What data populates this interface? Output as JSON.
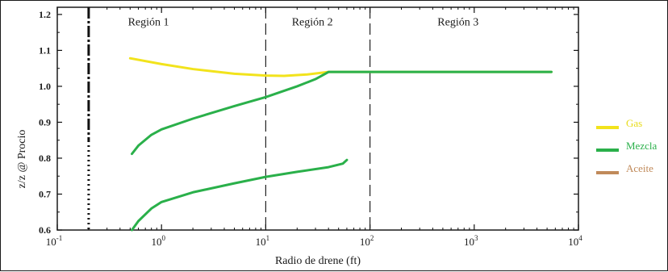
{
  "chart_data": {
    "type": "line",
    "xscale": "log",
    "xlabel": "Radio de drene (ft)",
    "ylabel": "z/z @ Procio",
    "xlim": [
      0.1,
      10000
    ],
    "ylim": [
      0.6,
      1.22
    ],
    "xticks": [
      {
        "value": 0.1,
        "base": "10",
        "exp": "-1"
      },
      {
        "value": 1,
        "base": "10",
        "exp": "0"
      },
      {
        "value": 10,
        "base": "10",
        "exp": "1"
      },
      {
        "value": 100,
        "base": "10",
        "exp": "2"
      },
      {
        "value": 1000,
        "base": "10",
        "exp": "3"
      },
      {
        "value": 10000,
        "base": "10",
        "exp": "4"
      }
    ],
    "yticks": [
      {
        "value": 0.6,
        "label": "0.6"
      },
      {
        "value": 0.7,
        "label": "0.7"
      },
      {
        "value": 0.8,
        "label": "0.8"
      },
      {
        "value": 0.9,
        "label": "0.9"
      },
      {
        "value": 1.0,
        "label": "1.0"
      },
      {
        "value": 1.1,
        "label": "1.1"
      },
      {
        "value": 1.2,
        "label": "1.2"
      }
    ],
    "region_lines": [
      {
        "x": 0.2,
        "style": "dashdot"
      },
      {
        "x": 10,
        "style": "dash"
      },
      {
        "x": 100,
        "style": "dash"
      }
    ],
    "regions": [
      {
        "label": "Región 1",
        "x": 0.75,
        "y": 1.17
      },
      {
        "label": "Región 2",
        "x": 28,
        "y": 1.17
      },
      {
        "label": "Región 3",
        "x": 700,
        "y": 1.17
      }
    ],
    "series": [
      {
        "name": "Gas",
        "color": "#f2e31c",
        "points": [
          [
            0.5,
            1.078
          ],
          [
            1,
            1.062
          ],
          [
            2,
            1.048
          ],
          [
            5,
            1.035
          ],
          [
            10,
            1.03
          ],
          [
            15,
            1.029
          ],
          [
            25,
            1.033
          ],
          [
            40,
            1.04
          ],
          [
            100,
            1.04
          ],
          [
            1000,
            1.04
          ],
          [
            5500,
            1.04
          ]
        ]
      },
      {
        "name": "Mezcla",
        "color": "#2ab04a",
        "points": [
          [
            0.52,
            0.812
          ],
          [
            0.6,
            0.835
          ],
          [
            0.8,
            0.865
          ],
          [
            1,
            0.88
          ],
          [
            2,
            0.91
          ],
          [
            5,
            0.945
          ],
          [
            10,
            0.97
          ],
          [
            20,
            1.0
          ],
          [
            30,
            1.02
          ],
          [
            40,
            1.04
          ],
          [
            100,
            1.04
          ],
          [
            1000,
            1.04
          ],
          [
            5500,
            1.04
          ]
        ]
      },
      {
        "name": "Mezcla",
        "color": "#2ab04a",
        "points": [
          [
            0.52,
            0.6
          ],
          [
            0.6,
            0.625
          ],
          [
            0.8,
            0.66
          ],
          [
            1,
            0.678
          ],
          [
            2,
            0.705
          ],
          [
            5,
            0.73
          ],
          [
            10,
            0.748
          ],
          [
            20,
            0.762
          ],
          [
            40,
            0.775
          ],
          [
            55,
            0.785
          ],
          [
            60,
            0.795
          ]
        ]
      }
    ],
    "legend": [
      {
        "name": "Gas",
        "color": "#f2e31c",
        "text_color": "#e8dc1a"
      },
      {
        "name": "Mezcla",
        "color": "#2ab04a",
        "text_color": "#2ab04a"
      },
      {
        "name": "Aceite",
        "color": "#c08a5a",
        "text_color": "#c08a5a"
      }
    ],
    "legend_placement": "right",
    "grid": false
  }
}
